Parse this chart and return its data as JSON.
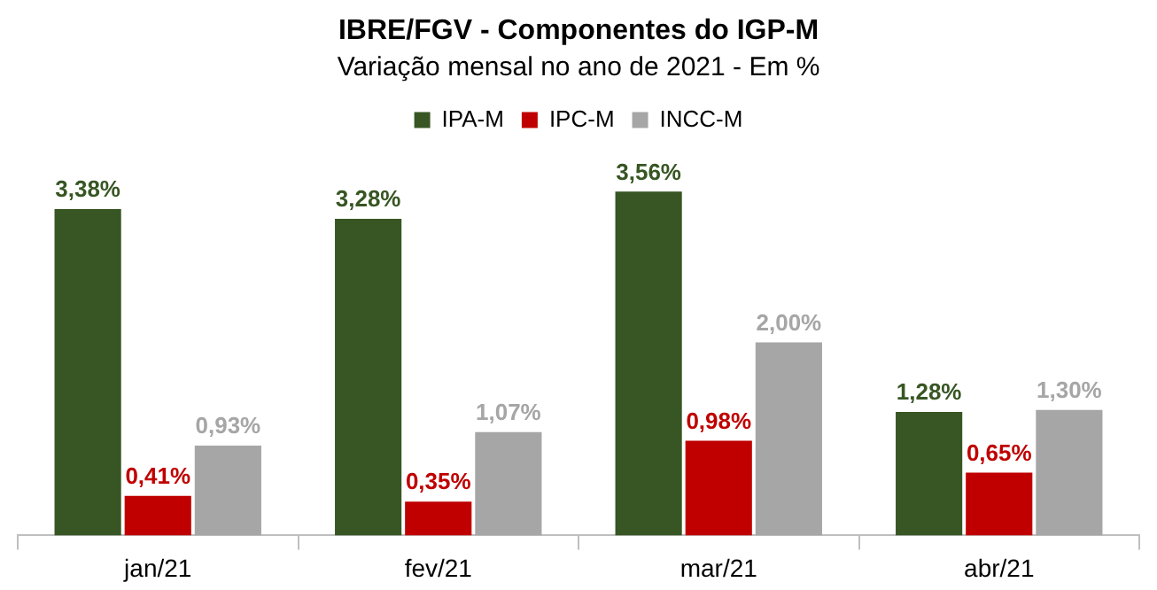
{
  "chart_data": {
    "type": "bar",
    "title": "IBRE/FGV - Componentes do IGP-M",
    "subtitle": "Variação mensal no ano de 2021 - Em %",
    "categories": [
      "jan/21",
      "fev/21",
      "mar/21",
      "abr/21"
    ],
    "series": [
      {
        "name": "IPA-M",
        "color": "#375623",
        "values": [
          3.38,
          3.28,
          3.56,
          1.28
        ],
        "value_labels": [
          "3,38%",
          "3,28%",
          "3,56%",
          "1,28%"
        ]
      },
      {
        "name": "IPC-M",
        "color": "#c00000",
        "values": [
          0.41,
          0.35,
          0.98,
          0.65
        ],
        "value_labels": [
          "0,41%",
          "0,35%",
          "0,98%",
          "0,65%"
        ]
      },
      {
        "name": "INCC-M",
        "color": "#a6a6a6",
        "values": [
          0.93,
          1.07,
          2.0,
          1.3
        ],
        "value_labels": [
          "0,93%",
          "1,07%",
          "2,00%",
          "1,30%"
        ]
      }
    ],
    "legend": "top",
    "grid": false
  }
}
